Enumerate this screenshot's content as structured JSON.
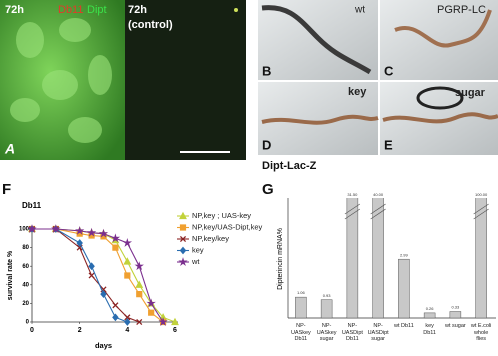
{
  "panels": {
    "A": {
      "label": "A",
      "time_left": "72h",
      "stain_red": "Db11",
      "stain_green": "Dipt",
      "time_right": "72h",
      "control": "(control)"
    },
    "B": {
      "label": "B",
      "genotype": "wt"
    },
    "C": {
      "label": "C",
      "genotype": "PGRP-LC"
    },
    "D": {
      "label": "D",
      "genotype": "key"
    },
    "E": {
      "label": "E",
      "genotype": "sugar"
    },
    "reporter": "Dipt-Lac-Z",
    "F": {
      "label": "F"
    },
    "G": {
      "label": "G"
    }
  },
  "chart_data": [
    {
      "type": "line",
      "subtitle": "Db11",
      "x_label": "days",
      "y_label": "survival rate %",
      "x": [
        0,
        1,
        2,
        2.5,
        3,
        3.5,
        4,
        4.5,
        5,
        5.5,
        6
      ],
      "xlim": [
        0,
        6
      ],
      "xticks": [
        0,
        2,
        4,
        6
      ],
      "ylim": [
        0,
        100
      ],
      "yticks": [
        0,
        20,
        40,
        60,
        80,
        100
      ],
      "legend": "upper right",
      "series": [
        {
          "name": "NP,key ; UAS-key",
          "color": "#c2d23a",
          "marker": "triangle",
          "values": [
            100,
            100,
            98,
            96,
            95,
            88,
            65,
            40,
            20,
            5,
            0
          ]
        },
        {
          "name": "NP,key/UAS-Dipt,key",
          "color": "#f0a030",
          "marker": "square",
          "values": [
            100,
            100,
            95,
            93,
            92,
            80,
            50,
            30,
            10,
            0,
            null
          ]
        },
        {
          "name": "NP,key/key",
          "color": "#8b2323",
          "marker": "cross",
          "values": [
            100,
            100,
            80,
            50,
            35,
            18,
            5,
            0,
            null,
            null,
            null
          ]
        },
        {
          "name": "key",
          "color": "#2a6db0",
          "marker": "diamond",
          "values": [
            100,
            100,
            85,
            60,
            30,
            5,
            0,
            null,
            null,
            null,
            null
          ]
        },
        {
          "name": "wt",
          "color": "#7b2f8e",
          "marker": "star",
          "values": [
            100,
            100,
            98,
            96,
            95,
            90,
            85,
            60,
            20,
            0,
            null
          ]
        }
      ]
    },
    {
      "type": "bar",
      "y_label": "Dipterincin mRNA%",
      "color": "#c8c8c8",
      "ylim": [
        0,
        6
      ],
      "categories": [
        "NP-\nUASkey\nDb11",
        "NP-\nUASkey\nsugar",
        "NP-\nUASDipt\nDb11",
        "NP-\nUASDipt\nsugar",
        "wt Db11",
        "key\nDb11",
        "wt sugar",
        "wt E.coli\nwhole\nflies"
      ],
      "values": [
        1.06,
        0.93,
        31.5,
        40,
        2.99,
        0.26,
        0.33,
        100
      ],
      "value_labels": [
        "1.06",
        "0.93",
        "31.50",
        "40.00",
        "2.99",
        "0.26",
        "0.33",
        "100.00"
      ]
    }
  ]
}
